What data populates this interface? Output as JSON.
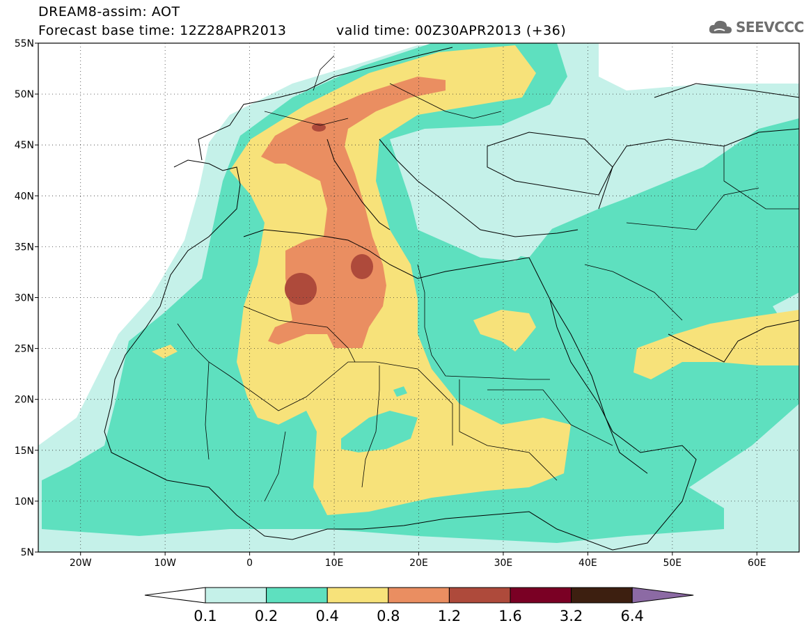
{
  "title": {
    "line1": "DREAM8-assim: AOT",
    "line2": "Forecast base time: 12Z28APR2013",
    "valid": "valid time: 00Z30APR2013 (+36)"
  },
  "logo": {
    "text": "SEEVCCC",
    "icon": "cloud-icon"
  },
  "map_data": {
    "lat_ticks": [
      "55N",
      "50N",
      "45N",
      "40N",
      "35N",
      "30N",
      "25N",
      "20N",
      "15N",
      "10N",
      "5N"
    ],
    "lon_ticks": [
      "20W",
      "10W",
      "0",
      "10E",
      "20E",
      "30E",
      "40E",
      "50E",
      "60E"
    ],
    "lat_range": [
      5,
      55
    ],
    "lon_range": [
      -25,
      65
    ]
  },
  "colorbar": {
    "levels": [
      "0.1",
      "0.2",
      "0.4",
      "0.8",
      "1.2",
      "1.6",
      "3.2",
      "6.4"
    ],
    "colors": {
      "under": "#ffffff",
      "c1": "#c5f1e9",
      "c2": "#5ee0bf",
      "c3": "#f7e27a",
      "c4": "#ea8e61",
      "c5": "#ae4a3b",
      "c6": "#7a0024",
      "c7": "#3d1f10",
      "over": "#8c6aa4"
    }
  }
}
